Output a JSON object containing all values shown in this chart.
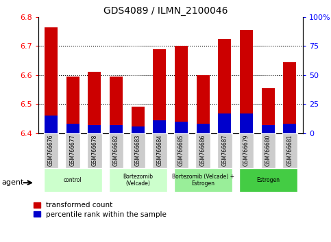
{
  "title": "GDS4089 / ILMN_2100046",
  "samples": [
    "GSM766676",
    "GSM766677",
    "GSM766678",
    "GSM766682",
    "GSM766683",
    "GSM766684",
    "GSM766685",
    "GSM766686",
    "GSM766687",
    "GSM766679",
    "GSM766680",
    "GSM766681"
  ],
  "red_values": [
    6.765,
    6.595,
    6.61,
    6.595,
    6.49,
    6.69,
    6.7,
    6.6,
    6.725,
    6.755,
    6.555,
    6.645
  ],
  "blue_values": [
    15,
    8,
    7,
    7,
    6,
    11,
    10,
    8,
    17,
    17,
    7,
    8
  ],
  "ylim_left": [
    6.4,
    6.8
  ],
  "ylim_right": [
    0,
    100
  ],
  "yticks_left": [
    6.4,
    6.5,
    6.6,
    6.7,
    6.8
  ],
  "yticks_right": [
    0,
    25,
    50,
    75,
    100
  ],
  "ytick_labels_right": [
    "0",
    "25",
    "50",
    "75",
    "100%"
  ],
  "bar_width": 0.6,
  "red_color": "#cc0000",
  "blue_color": "#0000cc",
  "group_configs": [
    [
      0,
      2,
      "control",
      "#ccffcc"
    ],
    [
      3,
      5,
      "Bortezomib\n(Velcade)",
      "#ccffcc"
    ],
    [
      6,
      8,
      "Bortezomib (Velcade) +\nEstrogen",
      "#99ee99"
    ],
    [
      9,
      11,
      "Estrogen",
      "#44cc44"
    ]
  ],
  "legend_red": "transformed count",
  "legend_blue": "percentile rank within the sample"
}
